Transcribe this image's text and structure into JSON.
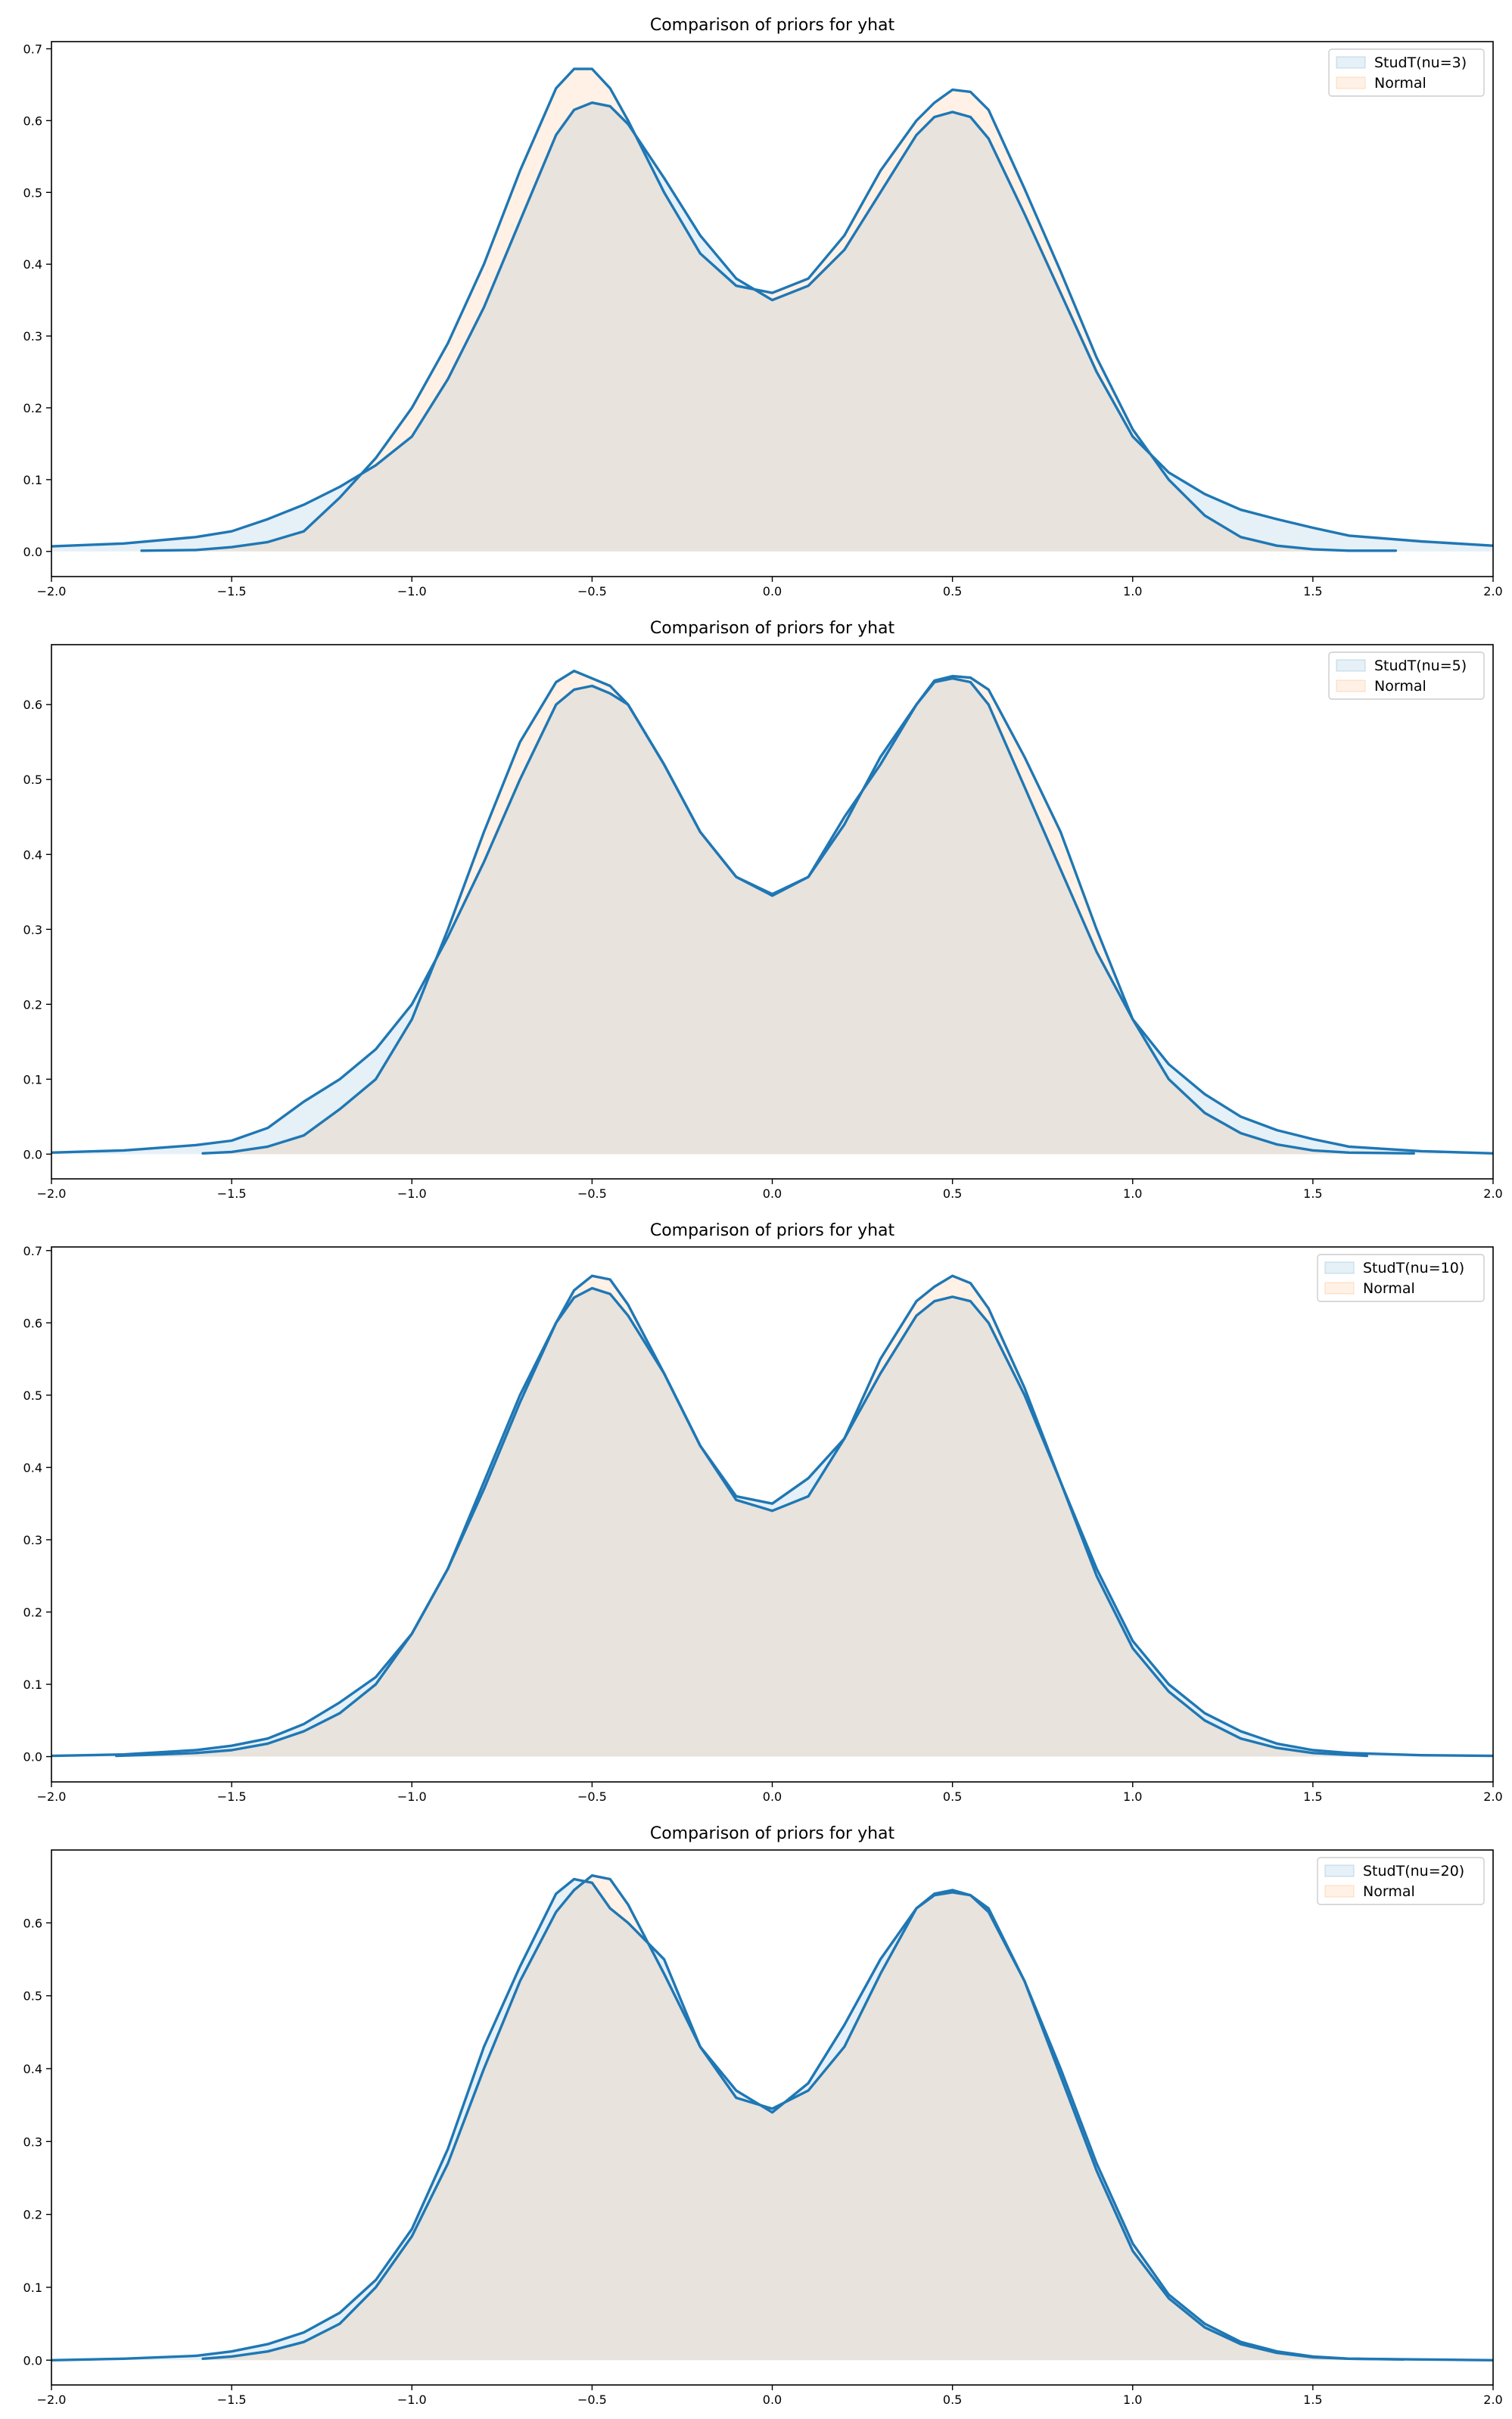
{
  "colors": {
    "line": "#1f77b4",
    "fill_studt": "#1f77b4",
    "fill_normal": "#ff7f0e",
    "overlap": "#e6e2dd"
  },
  "chart_data": [
    {
      "type": "area",
      "title": "Comparison of priors for yhat",
      "xlabel": "",
      "ylabel": "",
      "xlim": [
        -2.0,
        2.0
      ],
      "ylim": [
        -0.035,
        0.71
      ],
      "xticks": [
        "−2.0",
        "−1.5",
        "−1.0",
        "−0.5",
        "0.0",
        "0.5",
        "1.0",
        "1.5",
        "2.0"
      ],
      "yticks": [
        "0.0",
        "0.1",
        "0.2",
        "0.3",
        "0.4",
        "0.5",
        "0.6",
        "0.7"
      ],
      "grid": false,
      "legend": "top-right",
      "series": [
        {
          "name": "StudT(nu=3)",
          "x": [
            -2.0,
            -1.8,
            -1.6,
            -1.5,
            -1.4,
            -1.3,
            -1.2,
            -1.1,
            -1.0,
            -0.9,
            -0.8,
            -0.7,
            -0.6,
            -0.55,
            -0.5,
            -0.45,
            -0.4,
            -0.3,
            -0.2,
            -0.1,
            0.0,
            0.1,
            0.2,
            0.3,
            0.4,
            0.45,
            0.5,
            0.55,
            0.6,
            0.7,
            0.8,
            0.9,
            1.0,
            1.1,
            1.2,
            1.3,
            1.4,
            1.5,
            1.6,
            1.8,
            2.0
          ],
          "y": [
            0.007,
            0.011,
            0.02,
            0.028,
            0.045,
            0.065,
            0.09,
            0.12,
            0.16,
            0.24,
            0.34,
            0.46,
            0.58,
            0.615,
            0.625,
            0.62,
            0.595,
            0.52,
            0.44,
            0.38,
            0.35,
            0.37,
            0.42,
            0.5,
            0.58,
            0.605,
            0.612,
            0.605,
            0.575,
            0.47,
            0.36,
            0.25,
            0.16,
            0.11,
            0.08,
            0.058,
            0.045,
            0.033,
            0.022,
            0.014,
            0.008
          ]
        },
        {
          "name": "Normal",
          "x": [
            -1.75,
            -1.6,
            -1.5,
            -1.4,
            -1.3,
            -1.2,
            -1.1,
            -1.0,
            -0.9,
            -0.8,
            -0.7,
            -0.6,
            -0.55,
            -0.5,
            -0.45,
            -0.4,
            -0.3,
            -0.2,
            -0.1,
            0.0,
            0.1,
            0.2,
            0.3,
            0.4,
            0.45,
            0.5,
            0.55,
            0.6,
            0.7,
            0.8,
            0.9,
            1.0,
            1.1,
            1.2,
            1.3,
            1.4,
            1.5,
            1.6,
            1.73
          ],
          "y": [
            0.001,
            0.002,
            0.006,
            0.013,
            0.028,
            0.075,
            0.13,
            0.2,
            0.29,
            0.4,
            0.53,
            0.645,
            0.672,
            0.672,
            0.645,
            0.6,
            0.5,
            0.415,
            0.37,
            0.36,
            0.38,
            0.44,
            0.53,
            0.6,
            0.625,
            0.643,
            0.64,
            0.615,
            0.505,
            0.39,
            0.27,
            0.17,
            0.1,
            0.05,
            0.02,
            0.008,
            0.003,
            0.001,
            0.001
          ]
        }
      ]
    },
    {
      "type": "area",
      "title": "Comparison of priors for yhat",
      "xlabel": "",
      "ylabel": "",
      "xlim": [
        -2.0,
        2.0
      ],
      "ylim": [
        -0.033,
        0.68
      ],
      "xticks": [
        "−2.0",
        "−1.5",
        "−1.0",
        "−0.5",
        "0.0",
        "0.5",
        "1.0",
        "1.5",
        "2.0"
      ],
      "yticks": [
        "0.0",
        "0.1",
        "0.2",
        "0.3",
        "0.4",
        "0.5",
        "0.6"
      ],
      "grid": false,
      "legend": "top-right",
      "series": [
        {
          "name": "StudT(nu=5)",
          "x": [
            -2.0,
            -1.8,
            -1.6,
            -1.5,
            -1.4,
            -1.3,
            -1.2,
            -1.1,
            -1.0,
            -0.9,
            -0.8,
            -0.7,
            -0.6,
            -0.55,
            -0.5,
            -0.45,
            -0.4,
            -0.3,
            -0.2,
            -0.1,
            0.0,
            0.1,
            0.2,
            0.3,
            0.4,
            0.45,
            0.5,
            0.55,
            0.6,
            0.7,
            0.8,
            0.9,
            1.0,
            1.1,
            1.2,
            1.3,
            1.4,
            1.5,
            1.6,
            1.8,
            2.0
          ],
          "y": [
            0.002,
            0.005,
            0.012,
            0.018,
            0.035,
            0.07,
            0.1,
            0.14,
            0.2,
            0.29,
            0.39,
            0.5,
            0.6,
            0.62,
            0.625,
            0.615,
            0.6,
            0.52,
            0.43,
            0.37,
            0.345,
            0.37,
            0.44,
            0.53,
            0.6,
            0.63,
            0.635,
            0.63,
            0.6,
            0.49,
            0.38,
            0.27,
            0.18,
            0.12,
            0.08,
            0.05,
            0.032,
            0.02,
            0.01,
            0.004,
            0.001
          ]
        },
        {
          "name": "Normal",
          "x": [
            -1.58,
            -1.5,
            -1.4,
            -1.3,
            -1.2,
            -1.1,
            -1.0,
            -0.9,
            -0.8,
            -0.7,
            -0.6,
            -0.55,
            -0.5,
            -0.45,
            -0.4,
            -0.3,
            -0.2,
            -0.1,
            0.0,
            0.1,
            0.2,
            0.3,
            0.4,
            0.45,
            0.5,
            0.55,
            0.6,
            0.7,
            0.8,
            0.9,
            1.0,
            1.1,
            1.2,
            1.3,
            1.4,
            1.5,
            1.6,
            1.78
          ],
          "y": [
            0.001,
            0.003,
            0.01,
            0.025,
            0.06,
            0.1,
            0.18,
            0.3,
            0.43,
            0.55,
            0.63,
            0.645,
            0.635,
            0.625,
            0.6,
            0.52,
            0.43,
            0.37,
            0.347,
            0.37,
            0.45,
            0.52,
            0.6,
            0.632,
            0.638,
            0.636,
            0.62,
            0.53,
            0.43,
            0.3,
            0.18,
            0.1,
            0.055,
            0.028,
            0.013,
            0.005,
            0.002,
            0.001
          ]
        }
      ]
    },
    {
      "type": "area",
      "title": "Comparison of priors for yhat",
      "xlabel": "",
      "ylabel": "",
      "xlim": [
        -2.0,
        2.0
      ],
      "ylim": [
        -0.035,
        0.705
      ],
      "xticks": [
        "−2.0",
        "−1.5",
        "−1.0",
        "−0.5",
        "0.0",
        "0.5",
        "1.0",
        "1.5",
        "2.0"
      ],
      "yticks": [
        "0.0",
        "0.1",
        "0.2",
        "0.3",
        "0.4",
        "0.5",
        "0.6",
        "0.7"
      ],
      "grid": false,
      "legend": "top-right",
      "series": [
        {
          "name": "StudT(nu=10)",
          "x": [
            -2.0,
            -1.8,
            -1.6,
            -1.5,
            -1.4,
            -1.3,
            -1.2,
            -1.1,
            -1.0,
            -0.9,
            -0.8,
            -0.7,
            -0.6,
            -0.55,
            -0.5,
            -0.45,
            -0.4,
            -0.3,
            -0.2,
            -0.1,
            0.0,
            0.1,
            0.2,
            0.3,
            0.4,
            0.45,
            0.5,
            0.55,
            0.6,
            0.7,
            0.8,
            0.9,
            1.0,
            1.1,
            1.2,
            1.3,
            1.4,
            1.5,
            1.6,
            1.8,
            2.0
          ],
          "y": [
            0.001,
            0.003,
            0.009,
            0.015,
            0.025,
            0.045,
            0.075,
            0.11,
            0.17,
            0.26,
            0.38,
            0.5,
            0.6,
            0.635,
            0.648,
            0.64,
            0.61,
            0.53,
            0.43,
            0.36,
            0.35,
            0.385,
            0.44,
            0.53,
            0.61,
            0.63,
            0.636,
            0.63,
            0.6,
            0.5,
            0.38,
            0.26,
            0.16,
            0.1,
            0.06,
            0.035,
            0.018,
            0.009,
            0.005,
            0.002,
            0.001
          ]
        },
        {
          "name": "Normal",
          "x": [
            -1.82,
            -1.7,
            -1.6,
            -1.5,
            -1.4,
            -1.3,
            -1.2,
            -1.1,
            -1.0,
            -0.9,
            -0.8,
            -0.7,
            -0.6,
            -0.55,
            -0.5,
            -0.45,
            -0.4,
            -0.3,
            -0.2,
            -0.1,
            0.0,
            0.1,
            0.2,
            0.3,
            0.4,
            0.45,
            0.5,
            0.55,
            0.6,
            0.7,
            0.8,
            0.9,
            1.0,
            1.1,
            1.2,
            1.3,
            1.4,
            1.5,
            1.65
          ],
          "y": [
            0.001,
            0.003,
            0.005,
            0.009,
            0.018,
            0.035,
            0.06,
            0.1,
            0.17,
            0.26,
            0.37,
            0.49,
            0.6,
            0.645,
            0.665,
            0.66,
            0.625,
            0.53,
            0.43,
            0.355,
            0.34,
            0.36,
            0.44,
            0.55,
            0.63,
            0.65,
            0.665,
            0.655,
            0.62,
            0.51,
            0.38,
            0.25,
            0.15,
            0.09,
            0.05,
            0.025,
            0.012,
            0.005,
            0.001
          ]
        }
      ]
    },
    {
      "type": "area",
      "title": "Comparison of priors for yhat",
      "xlabel": "",
      "ylabel": "",
      "xlim": [
        -2.0,
        2.0
      ],
      "ylim": [
        -0.034,
        0.7
      ],
      "xticks": [
        "−2.0",
        "−1.5",
        "−1.0",
        "−0.5",
        "0.0",
        "0.5",
        "1.0",
        "1.5",
        "2.0"
      ],
      "yticks": [
        "0.0",
        "0.1",
        "0.2",
        "0.3",
        "0.4",
        "0.5",
        "0.6"
      ],
      "grid": false,
      "legend": "top-right",
      "series": [
        {
          "name": "StudT(nu=20)",
          "x": [
            -2.0,
            -1.8,
            -1.6,
            -1.5,
            -1.4,
            -1.3,
            -1.2,
            -1.1,
            -1.0,
            -0.9,
            -0.8,
            -0.7,
            -0.6,
            -0.55,
            -0.5,
            -0.45,
            -0.4,
            -0.3,
            -0.2,
            -0.1,
            0.0,
            0.1,
            0.2,
            0.3,
            0.4,
            0.45,
            0.5,
            0.55,
            0.6,
            0.7,
            0.8,
            0.9,
            1.0,
            1.1,
            1.2,
            1.3,
            1.4,
            1.5,
            1.6,
            1.8,
            2.0
          ],
          "y": [
            0.0,
            0.002,
            0.006,
            0.012,
            0.022,
            0.038,
            0.065,
            0.11,
            0.18,
            0.29,
            0.43,
            0.54,
            0.64,
            0.66,
            0.655,
            0.62,
            0.6,
            0.55,
            0.43,
            0.37,
            0.34,
            0.38,
            0.46,
            0.55,
            0.62,
            0.638,
            0.642,
            0.638,
            0.615,
            0.52,
            0.39,
            0.26,
            0.15,
            0.085,
            0.045,
            0.022,
            0.01,
            0.004,
            0.002,
            0.001,
            0.0
          ]
        },
        {
          "name": "Normal",
          "x": [
            -1.58,
            -1.5,
            -1.4,
            -1.3,
            -1.2,
            -1.1,
            -1.0,
            -0.9,
            -0.8,
            -0.7,
            -0.6,
            -0.55,
            -0.5,
            -0.45,
            -0.4,
            -0.3,
            -0.2,
            -0.1,
            0.0,
            0.1,
            0.2,
            0.3,
            0.4,
            0.45,
            0.5,
            0.55,
            0.6,
            0.7,
            0.8,
            0.9,
            1.0,
            1.1,
            1.2,
            1.3,
            1.4,
            1.5,
            1.6,
            1.75
          ],
          "y": [
            0.002,
            0.005,
            0.012,
            0.025,
            0.05,
            0.1,
            0.17,
            0.27,
            0.4,
            0.52,
            0.615,
            0.645,
            0.665,
            0.66,
            0.625,
            0.53,
            0.43,
            0.36,
            0.345,
            0.37,
            0.43,
            0.53,
            0.62,
            0.64,
            0.645,
            0.638,
            0.62,
            0.52,
            0.4,
            0.27,
            0.16,
            0.09,
            0.05,
            0.025,
            0.012,
            0.005,
            0.002,
            0.001
          ]
        }
      ]
    }
  ]
}
